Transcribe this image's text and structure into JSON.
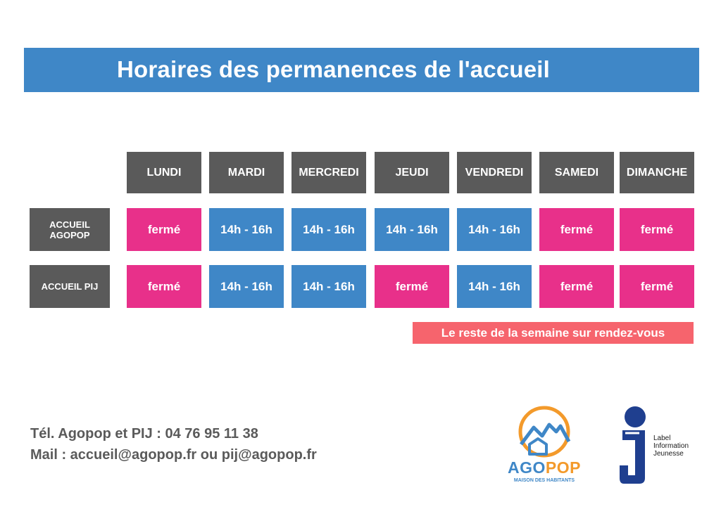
{
  "title": "Horaires des permanences de l'accueil",
  "days": [
    "LUNDI",
    "MARDI",
    "MERCREDI",
    "JEUDI",
    "VENDREDI",
    "SAMEDI",
    "DIMANCHE"
  ],
  "rows": [
    {
      "label_line1": "ACCUEIL",
      "label_line2": "AGOPOP",
      "cells": [
        "fermé",
        "14h - 16h",
        "14h - 16h",
        "14h - 16h",
        "14h - 16h",
        "fermé",
        "fermé"
      ]
    },
    {
      "label_line1": "ACCUEIL PIJ",
      "label_line2": "",
      "cells": [
        "fermé",
        "14h - 16h",
        "14h - 16h",
        "fermé",
        "14h - 16h",
        "fermé",
        "fermé"
      ]
    }
  ],
  "note": "Le reste de la semaine sur rendez-vous",
  "contact": {
    "phone": "Tél. Agopop et PIJ : 04 76 95 11 38",
    "mail": "Mail : accueil@agopop.fr ou pij@agopop.fr"
  },
  "logos": {
    "agopop_name_part1": "AGO",
    "agopop_name_part2": "POP",
    "agopop_subtitle": "MAISON DES HABITANTS",
    "ij_line1": "Label",
    "ij_line2": "Information",
    "ij_line3": "Jeunesse"
  },
  "colors": {
    "title_bar": "#3f87c7",
    "header_gray": "#5a5a5a",
    "open_blue": "#3f87c7",
    "closed_pink": "#e8308a",
    "note_coral": "#f6646d",
    "agopop_orange": "#f39a2b",
    "ij_navy": "#1f3f8f"
  }
}
